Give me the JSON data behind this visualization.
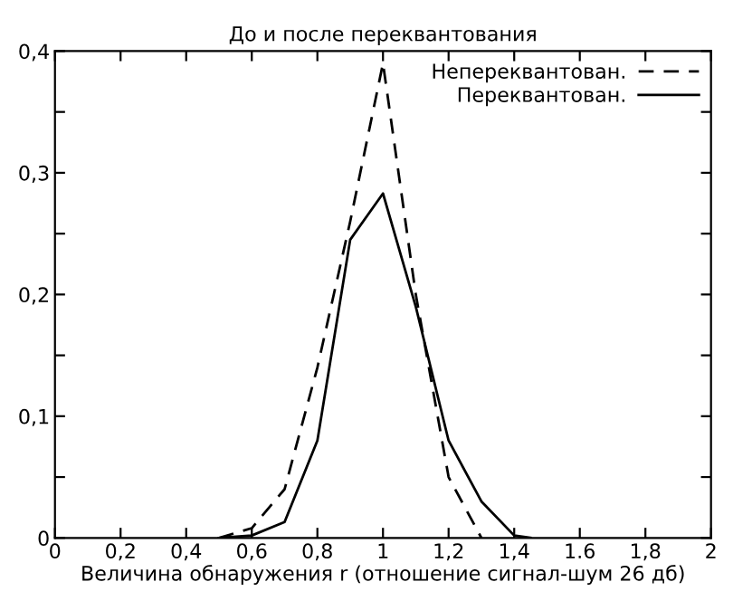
{
  "chart_data": {
    "type": "line",
    "title": "До и после переквантования",
    "xlabel": "Величина обнаружения r (отношение сигнал-шум 26 дб)",
    "x": [
      0.5,
      0.6,
      0.7,
      0.8,
      0.9,
      1.0,
      1.1,
      1.2,
      1.3,
      1.4,
      1.45
    ],
    "series": [
      {
        "name": "Непереквантован.",
        "color": "#000000",
        "line_style": "dashed",
        "x": [
          0.5,
          0.6,
          0.7,
          0.8,
          0.9,
          1.0,
          1.1,
          1.2,
          1.3
        ],
        "values": [
          0,
          0.008,
          0.04,
          0.14,
          0.26,
          0.39,
          0.2,
          0.05,
          0
        ]
      },
      {
        "name": "Переквантован.",
        "color": "#000000",
        "line_style": "solid",
        "values": [
          0,
          0.002,
          0.013,
          0.08,
          0.245,
          0.283,
          0.19,
          0.08,
          0.03,
          0.002,
          0
        ]
      }
    ],
    "xlim": [
      0,
      2
    ],
    "ylim": [
      0,
      0.4
    ],
    "xticks": [
      0,
      {
        "value": 0.2,
        "label": "0,2"
      },
      {
        "value": 0.4,
        "label": "0,4"
      },
      {
        "value": 0.6,
        "label": "0,6"
      },
      {
        "value": 0.8,
        "label": "0,8"
      },
      1,
      {
        "value": 1.2,
        "label": "1,2"
      },
      {
        "value": 1.4,
        "label": "1,4"
      },
      {
        "value": 1.6,
        "label": "1.6"
      },
      {
        "value": 1.8,
        "label": "1,8"
      },
      2
    ],
    "yticks": [
      0,
      {
        "value": 0.05,
        "label": null
      },
      {
        "value": 0.1,
        "label": "0,1"
      },
      {
        "value": 0.15,
        "label": null
      },
      {
        "value": 0.2,
        "label": "0,2"
      },
      {
        "value": 0.25,
        "label": null
      },
      {
        "value": 0.3,
        "label": "0,3"
      },
      {
        "value": 0.35,
        "label": null
      },
      {
        "value": 0.4,
        "label": "0,4"
      }
    ],
    "legend": "top right",
    "grid": false
  }
}
